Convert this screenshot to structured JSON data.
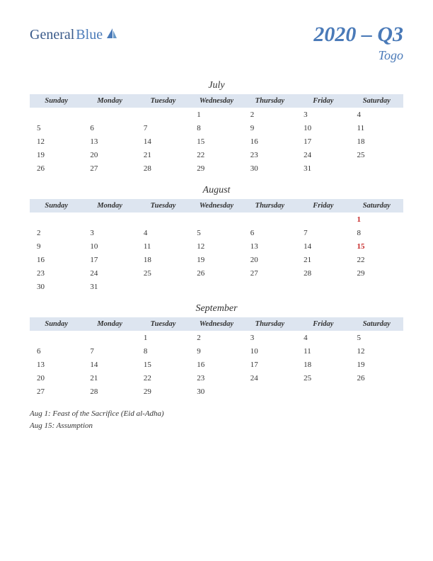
{
  "logo": {
    "text1": "General",
    "text2": "Blue"
  },
  "title": "2020 – Q3",
  "subtitle": "Togo",
  "colors": {
    "header_bg": "#dde5f0",
    "accent": "#4a7ab8",
    "logo_dark": "#3a5a8a",
    "holiday": "#c62828",
    "text": "#333333",
    "background": "#ffffff"
  },
  "day_headers": [
    "Sunday",
    "Monday",
    "Tuesday",
    "Wednesday",
    "Thursday",
    "Friday",
    "Saturday"
  ],
  "months": [
    {
      "name": "July",
      "weeks": [
        [
          "",
          "",
          "",
          "1",
          "2",
          "3",
          "4"
        ],
        [
          "5",
          "6",
          "7",
          "8",
          "9",
          "10",
          "11"
        ],
        [
          "12",
          "13",
          "14",
          "15",
          "16",
          "17",
          "18"
        ],
        [
          "19",
          "20",
          "21",
          "22",
          "23",
          "24",
          "25"
        ],
        [
          "26",
          "27",
          "28",
          "29",
          "30",
          "31",
          ""
        ]
      ],
      "holidays": []
    },
    {
      "name": "August",
      "weeks": [
        [
          "",
          "",
          "",
          "",
          "",
          "",
          "1"
        ],
        [
          "2",
          "3",
          "4",
          "5",
          "6",
          "7",
          "8"
        ],
        [
          "9",
          "10",
          "11",
          "12",
          "13",
          "14",
          "15"
        ],
        [
          "16",
          "17",
          "18",
          "19",
          "20",
          "21",
          "22"
        ],
        [
          "23",
          "24",
          "25",
          "26",
          "27",
          "28",
          "29"
        ],
        [
          "30",
          "31",
          "",
          "",
          "",
          "",
          ""
        ]
      ],
      "holidays": [
        "1",
        "15"
      ]
    },
    {
      "name": "September",
      "weeks": [
        [
          "",
          "",
          "1",
          "2",
          "3",
          "4",
          "5"
        ],
        [
          "6",
          "7",
          "8",
          "9",
          "10",
          "11",
          "12"
        ],
        [
          "13",
          "14",
          "15",
          "16",
          "17",
          "18",
          "19"
        ],
        [
          "20",
          "21",
          "22",
          "23",
          "24",
          "25",
          "26"
        ],
        [
          "27",
          "28",
          "29",
          "30",
          "",
          "",
          ""
        ]
      ],
      "holidays": []
    }
  ],
  "holiday_list": [
    "Aug 1: Feast of the Sacrifice (Eid al-Adha)",
    "Aug 15: Assumption"
  ]
}
